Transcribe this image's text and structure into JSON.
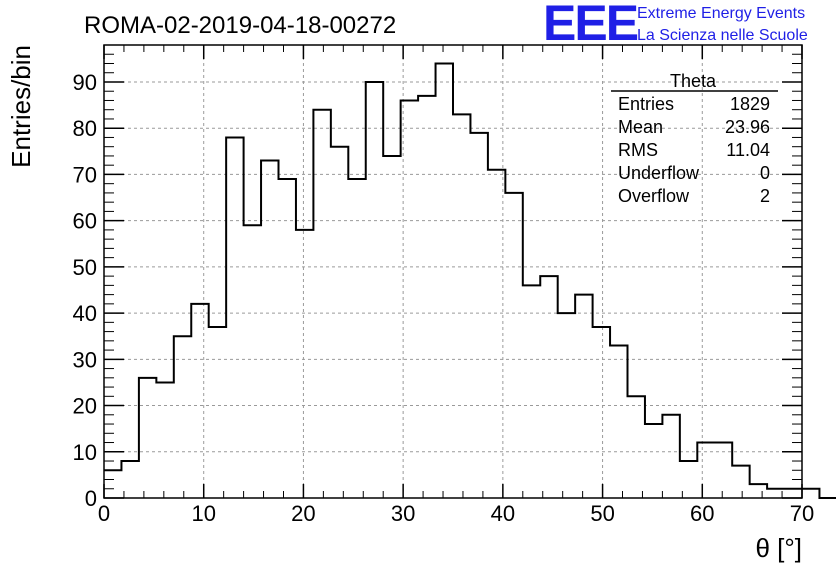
{
  "chart_data": {
    "type": "bar",
    "title": "ROMA-02-2019-04-18-00272",
    "xlabel": "θ [°]",
    "ylabel": "Entries/bin",
    "xlim": [
      0,
      70
    ],
    "ylim": [
      0,
      98
    ],
    "bin_width": 1.75,
    "grid": true,
    "x_ticks": [
      0,
      10,
      20,
      30,
      40,
      50,
      60,
      70
    ],
    "y_ticks": [
      0,
      10,
      20,
      30,
      40,
      50,
      60,
      70,
      80,
      90
    ],
    "values": [
      6,
      8,
      26,
      25,
      35,
      42,
      37,
      78,
      59,
      73,
      69,
      58,
      84,
      76,
      69,
      90,
      74,
      86,
      87,
      94,
      83,
      79,
      71,
      66,
      46,
      48,
      40,
      44,
      37,
      33,
      22,
      16,
      18,
      8,
      12,
      12,
      7,
      3,
      2,
      2,
      2,
      0
    ]
  },
  "stats_box": {
    "title": "Theta",
    "rows": [
      {
        "label": "Entries",
        "value": "1829"
      },
      {
        "label": "Mean",
        "value": "23.96"
      },
      {
        "label": "RMS",
        "value": "11.04"
      },
      {
        "label": "Underflow",
        "value": "0"
      },
      {
        "label": "Overflow",
        "value": "2"
      }
    ]
  },
  "logo": {
    "mark": "EEE",
    "line1": "Extreme Energy Events",
    "line2": "La Scienza nelle Scuole",
    "color": "#1f1fe6"
  }
}
